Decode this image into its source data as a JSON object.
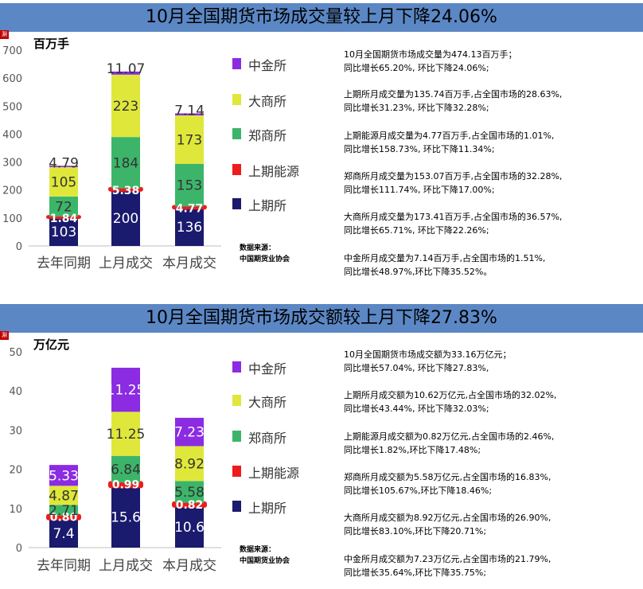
{
  "panels": [
    {
      "title": "10月全国期货市场成交量较上月下降24.06%",
      "badge": "淵",
      "unit": "百万手",
      "legend": [
        {
          "name": "中金所",
          "color": "#8b2be2"
        },
        {
          "name": "大商所",
          "color": "#dfe83a"
        },
        {
          "name": "郑商所",
          "color": "#3cb56a"
        },
        {
          "name": "上期能源",
          "color": "#ee1c1c"
        },
        {
          "name": "上期所",
          "color": "#1a1a6e"
        }
      ],
      "source_line1": "数据来源：",
      "source_line2": "中国期货业协会",
      "notes": [
        {
          "line1": "10月全国期货市场成交量为474.13百万手；",
          "line2": "同比增长65.20%, 环比下降24.06%;"
        },
        {
          "line1": "上期所月成交量为135.74百万手,占全国市场的28.63%,",
          "line2": "同比增长31.23%, 环比下降32.28%;"
        },
        {
          "line1": "上期能源月成交量为4.77百万手,占全国市场的1.01%,",
          "line2": "同比增长158.73%, 环比下降11.34%;"
        },
        {
          "line1": "郑商所月成交量为153.07百万手,占全国市场的32.28%,",
          "line2": "同比增长111.74%, 环比下降17.00%;"
        },
        {
          "line1": "大商所月成交量为173.41百万手,占全国市场的36.57%,",
          "line2": "同比增长65.71%, 环比下降22.26%;"
        },
        {
          "line1": "中金所月成交量为7.14百万手,占全国市场的1.51%,",
          "line2": "同比增长48.97%,环比下降35.52%。"
        }
      ]
    },
    {
      "title": "10月全国期货市场成交额较上月下降27.83%",
      "badge": "淵",
      "unit": "万亿元",
      "legend": [
        {
          "name": "中金所",
          "color": "#8b2be2"
        },
        {
          "name": "大商所",
          "color": "#dfe83a"
        },
        {
          "name": "郑商所",
          "color": "#3cb56a"
        },
        {
          "name": "上期能源",
          "color": "#ee1c1c"
        },
        {
          "name": "上期所",
          "color": "#1a1a6e"
        }
      ],
      "source_line1": "数据来源：",
      "source_line2": "中国期货业协会",
      "notes": [
        {
          "line1": "10月全国期货市场成交额为33.16万亿元；",
          "line2": "同比增长57.04%, 环比下降27.83%,"
        },
        {
          "line1": "上期所月成交额为10.62万亿元,占全国市场的32.02%,",
          "line2": "同比增长43.44%, 环比下降32.03%;"
        },
        {
          "line1": "上期能源月成交额为0.82万亿元,占全国市场的2.46%,",
          "line2": "同比增长1.82%,环比下降17.48%;"
        },
        {
          "line1": "郑商所月成交额为5.58万亿元,占全国市场的16.83%,",
          "line2": "同比增长105.67%,环比下降18.46%;"
        },
        {
          "line1": "大商所月成交额为8.92万亿元,占全国市场的26.90%,",
          "line2": "同比增长83.10%,环比下降20.71%;"
        },
        {
          "line1": "中金所月成交额为7.23万亿元,占全国市场的21.79%,",
          "line2": "同比增长35.64%,环比下降35.75%;"
        }
      ]
    }
  ],
  "chart_data": [
    {
      "type": "bar",
      "stacked": true,
      "title": "10月全国期货市场成交量较上月下降24.06%",
      "ylabel": "百万手",
      "categories": [
        "去年同期",
        "上月成交",
        "本月成交"
      ],
      "yticks": [
        0,
        100,
        200,
        300,
        400,
        500,
        600,
        700
      ],
      "ylim": [
        0,
        700
      ],
      "legend_position": "right",
      "series": [
        {
          "name": "上期所",
          "color": "#1a1a6e",
          "values": [
            103,
            200,
            136
          ],
          "labels": [
            "103",
            "200",
            "136"
          ]
        },
        {
          "name": "上期能源",
          "color": "#ee1c1c",
          "values": [
            1.84,
            5.38,
            4.77
          ],
          "labels": [
            "1.84",
            "5.38",
            "4.77"
          ]
        },
        {
          "name": "郑商所",
          "color": "#3cb56a",
          "values": [
            72,
            184,
            153
          ],
          "labels": [
            "72",
            "184",
            "153"
          ]
        },
        {
          "name": "大商所",
          "color": "#dfe83a",
          "values": [
            105,
            223,
            173
          ],
          "labels": [
            "105",
            "223",
            "173"
          ]
        },
        {
          "name": "中金所",
          "color": "#8b2be2",
          "values": [
            4.79,
            11.07,
            7.14
          ],
          "labels": [
            "4.79",
            "11.07",
            "7.14"
          ]
        }
      ]
    },
    {
      "type": "bar",
      "stacked": true,
      "title": "10月全国期货市场成交额较上月下降27.83%",
      "ylabel": "万亿元",
      "categories": [
        "去年同期",
        "上月成交",
        "本月成交"
      ],
      "yticks": [
        0,
        10,
        20,
        30,
        40,
        50
      ],
      "ylim": [
        0,
        50
      ],
      "legend_position": "right",
      "series": [
        {
          "name": "上期所",
          "color": "#1a1a6e",
          "values": [
            7.4,
            15.6,
            10.6
          ],
          "labels": [
            "7.4",
            "15.6",
            "10.6"
          ]
        },
        {
          "name": "上期能源",
          "color": "#ee1c1c",
          "values": [
            0.8,
            0.99,
            0.82
          ],
          "labels": [
            "0.80",
            "0.99",
            "0.82"
          ]
        },
        {
          "name": "郑商所",
          "color": "#3cb56a",
          "values": [
            2.71,
            6.84,
            5.58
          ],
          "labels": [
            "2.71",
            "6.84",
            "5.58"
          ]
        },
        {
          "name": "大商所",
          "color": "#dfe83a",
          "values": [
            4.87,
            11.25,
            8.92
          ],
          "labels": [
            "4.87",
            "11.25",
            "8.92"
          ]
        },
        {
          "name": "中金所",
          "color": "#8b2be2",
          "values": [
            5.33,
            11.25,
            7.23
          ],
          "labels": [
            "5.33",
            "11.25",
            "7.23"
          ]
        }
      ]
    }
  ]
}
